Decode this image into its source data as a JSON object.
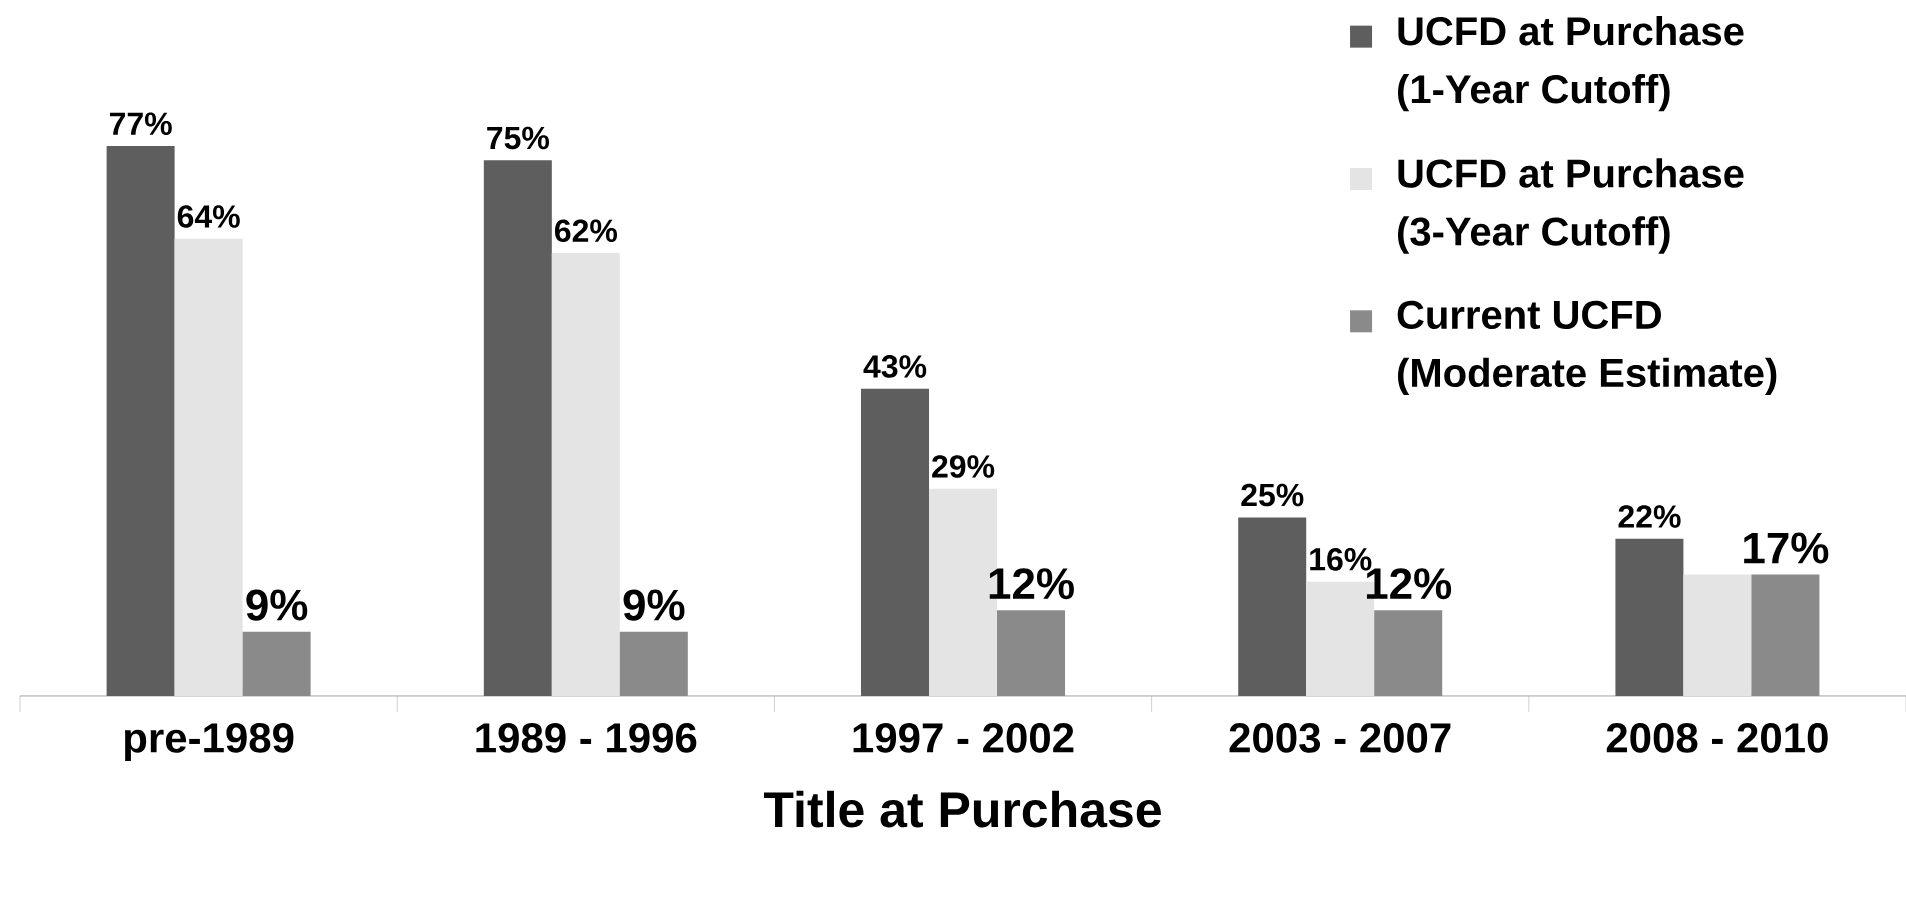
{
  "chart_data": {
    "type": "bar",
    "xlabel": "Title at Purchase",
    "categories": [
      "pre-1989",
      "1989 - 1996",
      "1997 - 2002",
      "2003 - 2007",
      "2008 - 2010"
    ],
    "legend": "top right",
    "series": [
      {
        "name": "UCFD at Purchase (1-Year Cutoff)",
        "color": "#5e5e5e",
        "values": [
          77,
          75,
          43,
          25,
          22
        ],
        "value_labels": [
          "77%",
          "75%",
          "43%",
          "25%",
          "22%"
        ]
      },
      {
        "name": "UCFD at Purchase (3-Year Cutoff)",
        "color": "#e4e4e4",
        "values": [
          64,
          62,
          29,
          16,
          17
        ],
        "value_labels": [
          "64%",
          "62%",
          "29%",
          "16%",
          null
        ]
      },
      {
        "name": "Current UCFD (Moderate Estimate)",
        "color": "#8a8a8a",
        "values": [
          9,
          9,
          12,
          12,
          17
        ],
        "value_labels": [
          "9%",
          "9%",
          "12%",
          "12%",
          "17%"
        ]
      }
    ]
  }
}
